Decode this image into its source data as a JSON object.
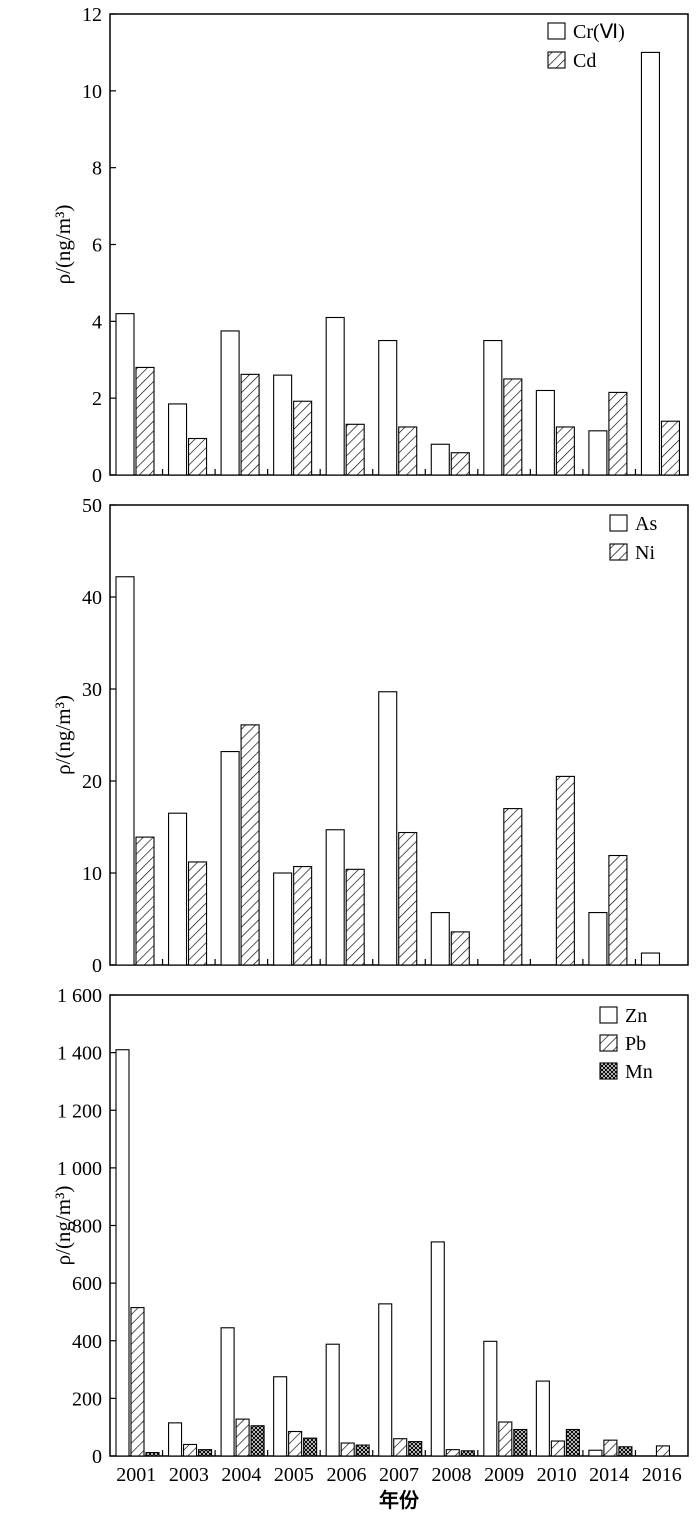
{
  "chart_data": [
    {
      "type": "bar",
      "categories": [
        "2001",
        "2003",
        "2004",
        "2005",
        "2006",
        "2007",
        "2008",
        "2009",
        "2010",
        "2014",
        "2016"
      ],
      "ylabel": "ρ/(ng/m³)",
      "ylim": [
        0,
        12
      ],
      "yticks": [
        0,
        2,
        4,
        6,
        8,
        10,
        12
      ],
      "ytick_labels": [
        "0",
        "2",
        "4",
        "6",
        "8",
        "10",
        "12"
      ],
      "legend_position": "top-right",
      "series": [
        {
          "name": "Cr(Ⅵ)",
          "pattern": "empty",
          "values": [
            4.2,
            1.85,
            3.75,
            2.6,
            4.1,
            3.5,
            0.8,
            3.5,
            2.2,
            1.15,
            11.0
          ]
        },
        {
          "name": "Cd",
          "pattern": "hatch",
          "values": [
            2.8,
            0.95,
            2.62,
            1.92,
            1.32,
            1.25,
            0.58,
            2.5,
            1.25,
            2.15,
            1.4
          ]
        }
      ]
    },
    {
      "type": "bar",
      "categories": [
        "2001",
        "2003",
        "2004",
        "2005",
        "2006",
        "2007",
        "2008",
        "2009",
        "2010",
        "2014",
        "2016"
      ],
      "ylabel": "ρ/(ng/m³)",
      "ylim": [
        0,
        50
      ],
      "yticks": [
        0,
        10,
        20,
        30,
        40,
        50
      ],
      "ytick_labels": [
        "0",
        "10",
        "20",
        "30",
        "40",
        "50"
      ],
      "legend_position": "top-right",
      "series": [
        {
          "name": "As",
          "pattern": "empty",
          "values": [
            42.2,
            16.5,
            23.2,
            10.0,
            14.7,
            29.7,
            5.7,
            null,
            null,
            5.7,
            1.3
          ]
        },
        {
          "name": "Ni",
          "pattern": "hatch",
          "values": [
            13.9,
            11.2,
            26.1,
            10.7,
            10.4,
            14.4,
            3.6,
            17.0,
            20.5,
            11.9,
            null
          ]
        }
      ]
    },
    {
      "type": "bar",
      "categories": [
        "2001",
        "2003",
        "2004",
        "2005",
        "2006",
        "2007",
        "2008",
        "2009",
        "2010",
        "2014",
        "2016"
      ],
      "xlabel": "年份",
      "ylabel": "ρ/(ng/m³)",
      "ylim": [
        0,
        1600
      ],
      "yticks": [
        0,
        200,
        400,
        600,
        800,
        1000,
        1200,
        1400,
        1600
      ],
      "ytick_labels": [
        "0",
        "200",
        "400",
        "600",
        "800",
        "1 000",
        "1 200",
        "1 400",
        "1 600"
      ],
      "legend_position": "top-right",
      "series": [
        {
          "name": "Zn",
          "pattern": "empty",
          "values": [
            1410,
            115,
            445,
            275,
            388,
            528,
            743,
            398,
            260,
            20,
            null
          ]
        },
        {
          "name": "Pb",
          "pattern": "hatch",
          "values": [
            515,
            40,
            128,
            85,
            45,
            60,
            22,
            118,
            52,
            55,
            35
          ]
        },
        {
          "name": "Mn",
          "pattern": "cross",
          "values": [
            12,
            22,
            105,
            62,
            38,
            50,
            18,
            92,
            92,
            32,
            null
          ]
        }
      ]
    }
  ]
}
